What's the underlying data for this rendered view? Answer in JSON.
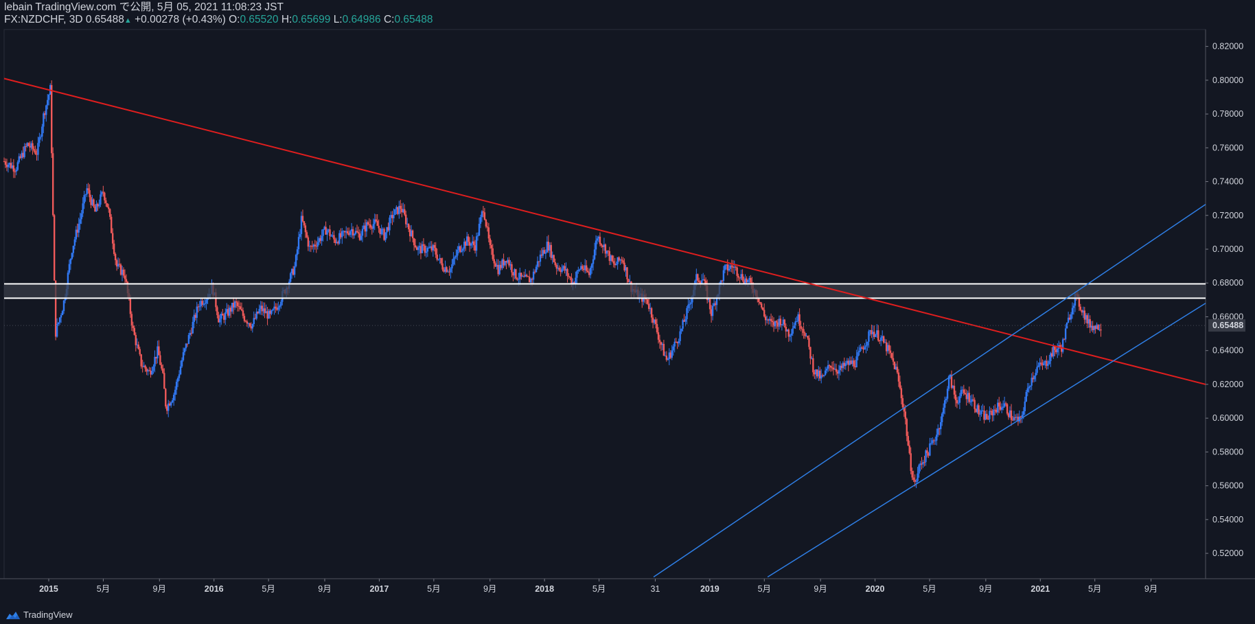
{
  "header": {
    "publisher_line": "lebain TradingView.com で公開, 5月 05, 2021 11:08:23 JST",
    "symbol": "FX:NZDCHF, 3D",
    "last": "0.65488",
    "change_arrow": "▲",
    "change": "+0.00278 (+0.43%)",
    "o_label": "O:",
    "o_value": "0.65520",
    "h_label": "H:",
    "h_value": "0.65699",
    "l_label": "L:",
    "l_value": "0.64986",
    "c_label": "C:",
    "c_value": "0.65488"
  },
  "footer": {
    "brand": "TradingView",
    "logo_icon": "tradingview-logo-icon"
  },
  "colors": {
    "background": "#131722",
    "up": "#3179f5",
    "down": "#f05a5a",
    "trendline": "#e01e1e",
    "channel": "#2f7fe6",
    "zone_fill": "#3a3d48",
    "zone_border": "#ffffff",
    "price_label_bg": "#363a45"
  },
  "chart_data": {
    "type": "candlestick",
    "symbol": "FX:NZDCHF",
    "interval": "3D",
    "ylim": [
      0.505,
      0.83
    ],
    "y_ticks": [
      "0.82000",
      "0.80000",
      "0.78000",
      "0.76000",
      "0.74000",
      "0.72000",
      "0.70000",
      "0.68000",
      "0.66000",
      "0.64000",
      "0.62000",
      "0.60000",
      "0.58000",
      "0.56000",
      "0.54000",
      "0.52000"
    ],
    "last_price_label": "0.65488",
    "x_ticks": [
      {
        "label": "2015",
        "bold": true,
        "t": 2015.0
      },
      {
        "label": "5月",
        "bold": false,
        "t": 2015.33
      },
      {
        "label": "9月",
        "bold": false,
        "t": 2015.67
      },
      {
        "label": "2016",
        "bold": true,
        "t": 2016.0
      },
      {
        "label": "5月",
        "bold": false,
        "t": 2016.33
      },
      {
        "label": "9月",
        "bold": false,
        "t": 2016.67
      },
      {
        "label": "2017",
        "bold": true,
        "t": 2017.0
      },
      {
        "label": "5月",
        "bold": false,
        "t": 2017.33
      },
      {
        "label": "9月",
        "bold": false,
        "t": 2017.67
      },
      {
        "label": "2018",
        "bold": true,
        "t": 2018.0
      },
      {
        "label": "5月",
        "bold": false,
        "t": 2018.33
      },
      {
        "label": "31",
        "bold": false,
        "t": 2018.67
      },
      {
        "label": "2019",
        "bold": true,
        "t": 2019.0
      },
      {
        "label": "5月",
        "bold": false,
        "t": 2019.33
      },
      {
        "label": "9月",
        "bold": false,
        "t": 2019.67
      },
      {
        "label": "2020",
        "bold": true,
        "t": 2020.0
      },
      {
        "label": "5月",
        "bold": false,
        "t": 2020.33
      },
      {
        "label": "9月",
        "bold": false,
        "t": 2020.67
      },
      {
        "label": "2021",
        "bold": true,
        "t": 2021.0
      },
      {
        "label": "5月",
        "bold": false,
        "t": 2021.33
      },
      {
        "label": "9月",
        "bold": false,
        "t": 2021.67
      }
    ],
    "close_path": [
      [
        2014.73,
        0.752
      ],
      [
        2014.8,
        0.748
      ],
      [
        2014.87,
        0.762
      ],
      [
        2014.93,
        0.757
      ],
      [
        2014.97,
        0.78
      ],
      [
        2015.01,
        0.795
      ],
      [
        2015.04,
        0.65
      ],
      [
        2015.09,
        0.668
      ],
      [
        2015.14,
        0.7
      ],
      [
        2015.19,
        0.718
      ],
      [
        2015.23,
        0.736
      ],
      [
        2015.28,
        0.722
      ],
      [
        2015.33,
        0.734
      ],
      [
        2015.36,
        0.724
      ],
      [
        2015.41,
        0.69
      ],
      [
        2015.46,
        0.685
      ],
      [
        2015.51,
        0.652
      ],
      [
        2015.56,
        0.632
      ],
      [
        2015.61,
        0.627
      ],
      [
        2015.66,
        0.64
      ],
      [
        2015.69,
        0.625
      ],
      [
        2015.71,
        0.606
      ],
      [
        2015.76,
        0.615
      ],
      [
        2015.81,
        0.636
      ],
      [
        2015.86,
        0.652
      ],
      [
        2015.91,
        0.668
      ],
      [
        2015.96,
        0.672
      ],
      [
        2015.99,
        0.678
      ],
      [
        2016.03,
        0.658
      ],
      [
        2016.08,
        0.662
      ],
      [
        2016.13,
        0.668
      ],
      [
        2016.18,
        0.66
      ],
      [
        2016.23,
        0.655
      ],
      [
        2016.28,
        0.665
      ],
      [
        2016.34,
        0.66
      ],
      [
        2016.39,
        0.668
      ],
      [
        2016.44,
        0.678
      ],
      [
        2016.49,
        0.69
      ],
      [
        2016.53,
        0.718
      ],
      [
        2016.58,
        0.7
      ],
      [
        2016.63,
        0.705
      ],
      [
        2016.68,
        0.712
      ],
      [
        2016.73,
        0.705
      ],
      [
        2016.78,
        0.708
      ],
      [
        2016.83,
        0.712
      ],
      [
        2016.88,
        0.708
      ],
      [
        2016.93,
        0.715
      ],
      [
        2016.98,
        0.715
      ],
      [
        2017.03,
        0.708
      ],
      [
        2017.08,
        0.72
      ],
      [
        2017.13,
        0.725
      ],
      [
        2017.18,
        0.712
      ],
      [
        2017.23,
        0.7
      ],
      [
        2017.28,
        0.7
      ],
      [
        2017.33,
        0.7
      ],
      [
        2017.38,
        0.69
      ],
      [
        2017.43,
        0.688
      ],
      [
        2017.48,
        0.7
      ],
      [
        2017.53,
        0.705
      ],
      [
        2017.58,
        0.702
      ],
      [
        2017.63,
        0.725
      ],
      [
        2017.67,
        0.7
      ],
      [
        2017.72,
        0.688
      ],
      [
        2017.77,
        0.695
      ],
      [
        2017.82,
        0.685
      ],
      [
        2017.87,
        0.682
      ],
      [
        2017.92,
        0.682
      ],
      [
        2017.97,
        0.695
      ],
      [
        2018.02,
        0.703
      ],
      [
        2018.07,
        0.69
      ],
      [
        2018.12,
        0.688
      ],
      [
        2018.17,
        0.68
      ],
      [
        2018.22,
        0.69
      ],
      [
        2018.27,
        0.685
      ],
      [
        2018.32,
        0.708
      ],
      [
        2018.37,
        0.7
      ],
      [
        2018.42,
        0.69
      ],
      [
        2018.47,
        0.695
      ],
      [
        2018.52,
        0.678
      ],
      [
        2018.57,
        0.672
      ],
      [
        2018.62,
        0.67
      ],
      [
        2018.67,
        0.655
      ],
      [
        2018.7,
        0.645
      ],
      [
        2018.74,
        0.634
      ],
      [
        2018.78,
        0.642
      ],
      [
        2018.82,
        0.65
      ],
      [
        2018.87,
        0.665
      ],
      [
        2018.92,
        0.683
      ],
      [
        2018.96,
        0.682
      ],
      [
        2019.01,
        0.662
      ],
      [
        2019.04,
        0.672
      ],
      [
        2019.09,
        0.688
      ],
      [
        2019.14,
        0.69
      ],
      [
        2019.19,
        0.684
      ],
      [
        2019.24,
        0.68
      ],
      [
        2019.29,
        0.673
      ],
      [
        2019.33,
        0.66
      ],
      [
        2019.38,
        0.655
      ],
      [
        2019.43,
        0.658
      ],
      [
        2019.48,
        0.65
      ],
      [
        2019.53,
        0.66
      ],
      [
        2019.58,
        0.65
      ],
      [
        2019.63,
        0.628
      ],
      [
        2019.68,
        0.623
      ],
      [
        2019.73,
        0.632
      ],
      [
        2019.78,
        0.628
      ],
      [
        2019.83,
        0.632
      ],
      [
        2019.88,
        0.633
      ],
      [
        2019.93,
        0.643
      ],
      [
        2019.98,
        0.652
      ],
      [
        2020.03,
        0.648
      ],
      [
        2020.08,
        0.64
      ],
      [
        2020.13,
        0.628
      ],
      [
        2020.18,
        0.602
      ],
      [
        2020.21,
        0.575
      ],
      [
        2020.24,
        0.56
      ],
      [
        2020.27,
        0.572
      ],
      [
        2020.32,
        0.58
      ],
      [
        2020.37,
        0.59
      ],
      [
        2020.41,
        0.603
      ],
      [
        2020.45,
        0.625
      ],
      [
        2020.49,
        0.61
      ],
      [
        2020.53,
        0.615
      ],
      [
        2020.58,
        0.612
      ],
      [
        2020.63,
        0.603
      ],
      [
        2020.68,
        0.6
      ],
      [
        2020.73,
        0.606
      ],
      [
        2020.78,
        0.608
      ],
      [
        2020.83,
        0.6
      ],
      [
        2020.88,
        0.598
      ],
      [
        2020.93,
        0.62
      ],
      [
        2020.98,
        0.63
      ],
      [
        2021.03,
        0.632
      ],
      [
        2021.08,
        0.64
      ],
      [
        2021.13,
        0.642
      ],
      [
        2021.18,
        0.662
      ],
      [
        2021.21,
        0.672
      ],
      [
        2021.25,
        0.665
      ],
      [
        2021.29,
        0.656
      ],
      [
        2021.33,
        0.654
      ],
      [
        2021.37,
        0.655
      ]
    ],
    "trendline": {
      "t1": 2014.73,
      "p1": 0.801,
      "t2": 2022.0,
      "p2": 0.62
    },
    "resistance_zone": {
      "top": 0.6795,
      "bottom": 0.671
    },
    "channel": [
      {
        "t1": 2018.66,
        "p1": 0.506,
        "t2": 2022.0,
        "p2": 0.7265
      },
      {
        "t1": 2019.35,
        "p1": 0.506,
        "t2": 2022.0,
        "p2": 0.668
      }
    ]
  }
}
